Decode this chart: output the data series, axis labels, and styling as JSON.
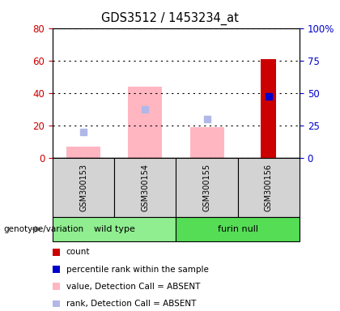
{
  "title": "GDS3512 / 1453234_at",
  "samples": [
    "GSM300153",
    "GSM300154",
    "GSM300155",
    "GSM300156"
  ],
  "bar_positions": [
    1,
    2,
    3,
    4
  ],
  "value_absent": [
    7,
    44,
    19,
    null
  ],
  "rank_absent": [
    16,
    30,
    24,
    null
  ],
  "count_value": [
    null,
    null,
    null,
    61
  ],
  "percentile_rank": [
    null,
    null,
    null,
    38
  ],
  "left_ylim": [
    0,
    80
  ],
  "right_ylim": [
    0,
    100
  ],
  "left_yticks": [
    0,
    20,
    40,
    60,
    80
  ],
  "right_yticks": [
    0,
    25,
    50,
    75,
    100
  ],
  "right_yticklabels": [
    "0",
    "25",
    "50",
    "75",
    "100%"
  ],
  "left_color": "#CC0000",
  "right_color": "#0000CC",
  "value_absent_color": "#FFB6C1",
  "rank_absent_color": "#B0B8E8",
  "count_color": "#CC0000",
  "percentile_color": "#0000CC",
  "pink_bar_width": 0.55,
  "red_bar_width": 0.25,
  "genotype_label": "genotype/variation",
  "groups": [
    {
      "name": "wild type",
      "start": 0,
      "end": 2,
      "color": "#90EE90"
    },
    {
      "name": "furin null",
      "start": 2,
      "end": 4,
      "color": "#55DD55"
    }
  ],
  "legend_items": [
    {
      "color": "#CC0000",
      "label": "count"
    },
    {
      "color": "#0000CC",
      "label": "percentile rank within the sample"
    },
    {
      "color": "#FFB6C1",
      "label": "value, Detection Call = ABSENT"
    },
    {
      "color": "#B0B8E8",
      "label": "rank, Detection Call = ABSENT"
    }
  ],
  "sample_bg": "#D3D3D3",
  "plot_bg": "#FFFFFF"
}
